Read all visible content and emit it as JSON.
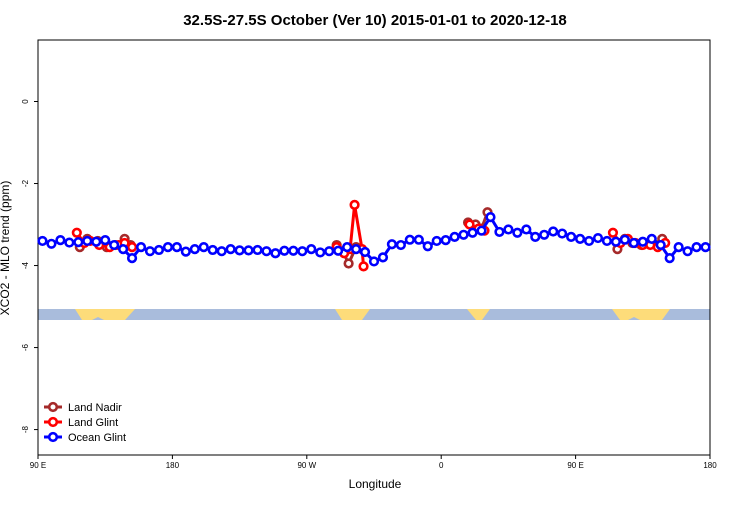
{
  "chart_data": {
    "type": "line",
    "title": "32.5S-27.5S October (Ver 10)   2015-01-01 to 2020-12-18",
    "x_label": "Longitude",
    "y_label": "XCO2 - MLO trend (ppm)",
    "xlim": [
      90,
      540
    ],
    "ylim": [
      -8.62,
      1.5
    ],
    "xticks": [
      {
        "value": 90,
        "label": "90 E"
      },
      {
        "value": 180,
        "label": "180"
      },
      {
        "value": 270,
        "label": "90 W"
      },
      {
        "value": 360,
        "label": "0"
      },
      {
        "value": 450,
        "label": "90 E"
      },
      {
        "value": 540,
        "label": "180"
      }
    ],
    "yticks": [
      0,
      -2,
      -4,
      -6,
      -8
    ],
    "legend": "bottom-left",
    "series": [
      {
        "name": "Land Nadir",
        "color": "#a52a2a",
        "x": [
          118,
          123,
          130,
          136,
          142,
          148,
          152,
          220,
          290,
          294,
          298,
          303,
          340,
          378,
          383,
          387,
          391,
          430,
          478,
          483,
          488,
          494,
          499,
          504,
          508
        ],
        "values": [
          -3.55,
          -3.35,
          -3.4,
          -3.55,
          -3.5,
          -3.35,
          -3.5,
          null,
          -3.5,
          -3.65,
          -3.95,
          -3.55,
          null,
          -2.95,
          -3.0,
          -3.1,
          -2.7,
          null,
          -3.6,
          -3.35,
          -3.45,
          -3.5,
          -3.45,
          -3.5,
          -3.35
        ]
      },
      {
        "name": "Land Glint",
        "color": "#ff0000",
        "x": [
          116,
          121,
          125,
          131,
          138,
          144,
          148,
          153,
          220,
          290,
          295,
          299,
          302,
          307,
          308,
          340,
          379,
          385,
          389,
          430,
          475,
          480,
          485,
          490,
          495,
          500,
          505,
          510
        ],
        "values": [
          -3.2,
          -3.45,
          -3.4,
          -3.5,
          -3.55,
          -3.5,
          -3.45,
          -3.55,
          null,
          -3.55,
          -3.7,
          -3.6,
          -2.52,
          -3.6,
          -4.02,
          null,
          -3.0,
          -3.1,
          -3.15,
          null,
          -3.2,
          -3.45,
          -3.35,
          -3.45,
          -3.5,
          -3.5,
          -3.55,
          -3.45
        ]
      },
      {
        "name": "Ocean Glint",
        "color": "#0000ff",
        "x": [
          93,
          99,
          105,
          111,
          117,
          123,
          129,
          135,
          141,
          147,
          153,
          159,
          165,
          171,
          177,
          183,
          189,
          195,
          201,
          207,
          213,
          219,
          225,
          231,
          237,
          243,
          249,
          255,
          261,
          267,
          273,
          279,
          285,
          291,
          297,
          303,
          309,
          315,
          321,
          327,
          333,
          339,
          345,
          351,
          357,
          363,
          369,
          375,
          381,
          387,
          393,
          399,
          405,
          411,
          417,
          423,
          429,
          435,
          441,
          447,
          453,
          459,
          465,
          471,
          477,
          483,
          489,
          495,
          501,
          507,
          513,
          519,
          525,
          531,
          537
        ],
        "values": [
          -3.4,
          -3.47,
          -3.38,
          -3.44,
          -3.43,
          -3.4,
          -3.42,
          -3.38,
          -3.5,
          -3.6,
          -3.82,
          -3.55,
          -3.65,
          -3.62,
          -3.55,
          -3.55,
          -3.66,
          -3.6,
          -3.55,
          -3.62,
          -3.65,
          -3.6,
          -3.63,
          -3.63,
          -3.62,
          -3.65,
          -3.7,
          -3.64,
          -3.64,
          -3.65,
          -3.6,
          -3.68,
          -3.65,
          -3.64,
          -3.55,
          -3.6,
          -3.67,
          -3.9,
          -3.8,
          -3.48,
          -3.5,
          -3.37,
          -3.37,
          -3.53,
          -3.4,
          -3.38,
          -3.3,
          -3.25,
          -3.2,
          -3.15,
          -2.82,
          -3.18,
          -3.12,
          -3.2,
          -3.12,
          -3.3,
          -3.25,
          -3.17,
          -3.22,
          -3.3,
          -3.35,
          -3.4,
          -3.33,
          -3.4,
          -3.42,
          -3.37,
          -3.45,
          -3.42,
          -3.35,
          -3.5,
          -3.82,
          -3.55,
          -3.65,
          -3.55,
          -3.55
        ]
      }
    ]
  }
}
